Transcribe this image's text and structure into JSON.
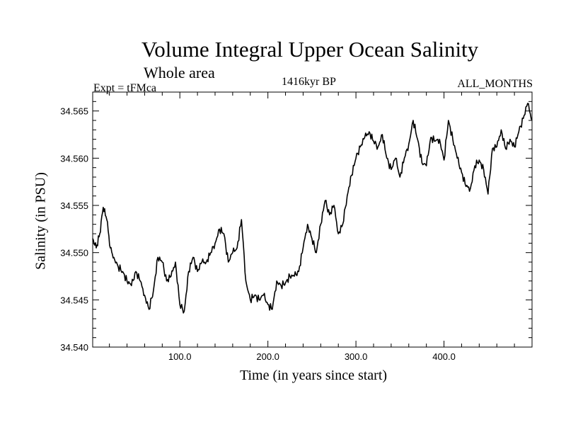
{
  "chart_data": {
    "type": "line",
    "title": "Volume Integral Upper Ocean Salinity",
    "subtitle": "Whole area",
    "experiment_label": "Expt = tFMca",
    "period_label": "1416kyr BP",
    "months_label": "ALL_MONTHS",
    "xlabel": "Time (in years since start)",
    "ylabel": "Salinity (in PSU)",
    "xlim": [
      1,
      500
    ],
    "ylim": [
      34.54,
      34.567
    ],
    "x_ticks": [
      100,
      200,
      300,
      400
    ],
    "x_tick_labels": [
      "100.0",
      "200.0",
      "300.0",
      "400.0"
    ],
    "y_ticks": [
      34.54,
      34.545,
      34.55,
      34.555,
      34.56,
      34.565
    ],
    "y_tick_labels": [
      "34.540",
      "34.545",
      "34.550",
      "34.555",
      "34.560",
      "34.565"
    ],
    "line_color": "#000000",
    "series": [
      {
        "name": "Salinity",
        "x": [
          1,
          5,
          9,
          13,
          17,
          21,
          25,
          30,
          35,
          40,
          45,
          50,
          55,
          60,
          65,
          70,
          75,
          80,
          85,
          90,
          95,
          100,
          105,
          110,
          115,
          120,
          125,
          130,
          135,
          140,
          145,
          150,
          155,
          160,
          165,
          170,
          175,
          180,
          185,
          190,
          195,
          200,
          205,
          210,
          215,
          220,
          225,
          230,
          235,
          240,
          245,
          250,
          255,
          260,
          265,
          270,
          275,
          280,
          285,
          290,
          295,
          300,
          305,
          310,
          315,
          320,
          325,
          330,
          335,
          340,
          345,
          350,
          355,
          360,
          365,
          370,
          375,
          380,
          385,
          390,
          395,
          400,
          405,
          410,
          415,
          420,
          425,
          430,
          435,
          440,
          445,
          450,
          455,
          460,
          465,
          470,
          475,
          480,
          485,
          490,
          495,
          500
        ],
        "values": [
          34.5515,
          34.5505,
          34.552,
          34.5548,
          34.5535,
          34.5505,
          34.5495,
          34.5485,
          34.548,
          34.547,
          34.5465,
          34.548,
          34.547,
          34.5455,
          34.544,
          34.546,
          34.5495,
          34.549,
          34.547,
          34.5475,
          34.549,
          34.5445,
          34.5438,
          34.548,
          34.5495,
          34.548,
          34.549,
          34.549,
          34.55,
          34.551,
          34.5525,
          34.552,
          34.549,
          34.55,
          34.5505,
          34.5535,
          34.547,
          34.545,
          34.5455,
          34.545,
          34.5455,
          34.5445,
          34.544,
          34.547,
          34.5465,
          34.5468,
          34.5475,
          34.5475,
          34.548,
          34.5505,
          34.553,
          34.5515,
          34.55,
          34.553,
          34.5555,
          34.554,
          34.555,
          34.552,
          34.553,
          34.556,
          34.5582,
          34.56,
          34.5612,
          34.5622,
          34.5628,
          34.5618,
          34.5612,
          34.5625,
          34.56,
          34.5588,
          34.56,
          34.558,
          34.56,
          34.5615,
          34.564,
          34.562,
          34.5595,
          34.5592,
          34.5622,
          34.5618,
          34.562,
          34.5598,
          34.564,
          34.562,
          34.56,
          34.5585,
          34.557,
          34.5568,
          34.5592,
          34.5598,
          34.5588,
          34.5562,
          34.561,
          34.5612,
          34.563,
          34.561,
          34.562,
          34.5612,
          34.5628,
          34.5642,
          34.5658,
          34.564
        ]
      }
    ]
  }
}
